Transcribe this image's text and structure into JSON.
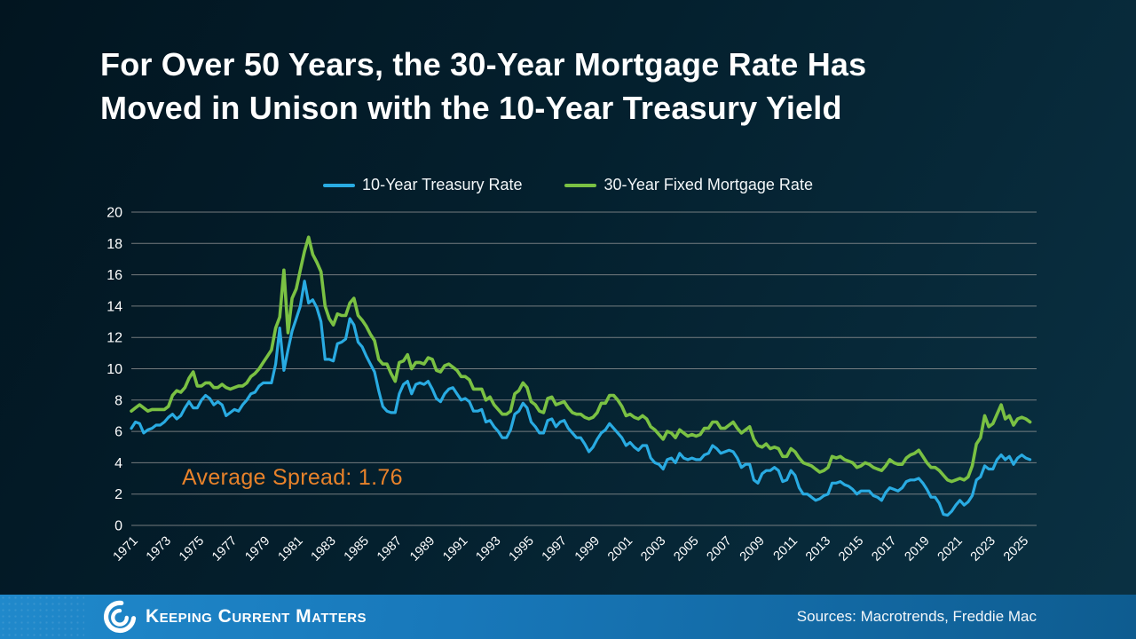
{
  "slide": {
    "title_line1": "For Over 50 Years, the 30-Year Mortgage Rate Has",
    "title_line2": "Moved in Unison with the 10-Year Treasury Yield"
  },
  "footer": {
    "brand": "Keeping Current Matters",
    "sources": "Sources: Macrotrends, Freddie Mac"
  },
  "colors": {
    "background_dark_navy": "#04202e",
    "treasury_blue": "#29abe2",
    "mortgage_green": "#7ac143",
    "annotation_orange": "#e8822a",
    "gridline_gray": "#9a9a9a",
    "footer_brand_blue": "#1878ba",
    "text_white": "#ffffff"
  },
  "chart_data": {
    "type": "line",
    "title": "",
    "xlabel": "",
    "ylabel": "",
    "ylim": [
      0,
      20
    ],
    "ytick_step": 2,
    "xlim": [
      1971,
      2025.9
    ],
    "grid": true,
    "legend_position": "top-center",
    "xticks": [
      "1971",
      "1973",
      "1975",
      "1977",
      "1979",
      "1981",
      "1983",
      "1985",
      "1987",
      "1989",
      "1991",
      "1993",
      "1995",
      "1997",
      "1999",
      "2001",
      "2003",
      "2005",
      "2007",
      "2009",
      "2011",
      "2013",
      "2015",
      "2017",
      "2019",
      "2021",
      "2023",
      "2025"
    ],
    "annotation": {
      "text": "Average Spread: 1.76"
    },
    "x_start": 1971,
    "x_step": 0.25,
    "series": [
      {
        "name": "10-Year Treasury Rate",
        "color": "#29abe2",
        "values": [
          6.2,
          6.6,
          6.5,
          5.9,
          6.1,
          6.2,
          6.4,
          6.4,
          6.6,
          6.9,
          7.1,
          6.8,
          7.0,
          7.5,
          7.9,
          7.5,
          7.5,
          8.0,
          8.3,
          8.1,
          7.7,
          7.9,
          7.7,
          7.0,
          7.2,
          7.4,
          7.3,
          7.7,
          8.0,
          8.4,
          8.5,
          8.9,
          9.1,
          9.1,
          9.1,
          10.3,
          12.6,
          9.9,
          11.2,
          12.4,
          13.2,
          14.0,
          15.6,
          14.2,
          14.4,
          13.9,
          13.0,
          10.6,
          10.6,
          10.5,
          11.6,
          11.7,
          11.9,
          13.2,
          12.8,
          11.7,
          11.4,
          10.8,
          10.3,
          9.8,
          8.6,
          7.6,
          7.3,
          7.2,
          7.2,
          8.4,
          9.0,
          9.2,
          8.4,
          9.0,
          9.1,
          9.0,
          9.2,
          8.7,
          8.1,
          7.9,
          8.4,
          8.7,
          8.8,
          8.4,
          8.0,
          8.1,
          7.9,
          7.3,
          7.3,
          7.4,
          6.6,
          6.7,
          6.3,
          6.0,
          5.6,
          5.6,
          6.1,
          7.1,
          7.3,
          7.8,
          7.5,
          6.6,
          6.3,
          5.9,
          5.9,
          6.7,
          6.8,
          6.3,
          6.6,
          6.7,
          6.2,
          5.9,
          5.6,
          5.6,
          5.2,
          4.7,
          5.0,
          5.5,
          5.9,
          6.1,
          6.5,
          6.2,
          5.9,
          5.6,
          5.1,
          5.3,
          5.0,
          4.8,
          5.1,
          5.1,
          4.3,
          4.0,
          3.9,
          3.6,
          4.2,
          4.3,
          4.0,
          4.6,
          4.3,
          4.2,
          4.3,
          4.2,
          4.2,
          4.5,
          4.6,
          5.1,
          4.9,
          4.6,
          4.7,
          4.8,
          4.7,
          4.3,
          3.7,
          3.9,
          3.9,
          2.9,
          2.7,
          3.3,
          3.5,
          3.5,
          3.7,
          3.5,
          2.8,
          2.9,
          3.5,
          3.2,
          2.4,
          2.0,
          2.0,
          1.8,
          1.6,
          1.7,
          1.9,
          2.0,
          2.7,
          2.7,
          2.8,
          2.6,
          2.5,
          2.3,
          2.0,
          2.2,
          2.2,
          2.2,
          1.9,
          1.8,
          1.6,
          2.1,
          2.4,
          2.3,
          2.2,
          2.4,
          2.8,
          2.9,
          2.9,
          3.0,
          2.7,
          2.3,
          1.8,
          1.8,
          1.4,
          0.7,
          0.65,
          0.9,
          1.3,
          1.6,
          1.3,
          1.5,
          1.9,
          2.9,
          3.1,
          3.8,
          3.6,
          3.6,
          4.2,
          4.5,
          4.2,
          4.4,
          3.9,
          4.3,
          4.5,
          4.3,
          4.2
        ]
      },
      {
        "name": "30-Year Fixed Mortgage Rate",
        "color": "#7ac143",
        "values": [
          7.3,
          7.5,
          7.7,
          7.5,
          7.3,
          7.4,
          7.4,
          7.4,
          7.4,
          7.6,
          8.3,
          8.6,
          8.5,
          8.8,
          9.4,
          9.8,
          8.9,
          8.9,
          9.1,
          9.1,
          8.8,
          8.8,
          9.0,
          8.8,
          8.7,
          8.8,
          8.9,
          8.9,
          9.1,
          9.5,
          9.7,
          10.0,
          10.4,
          10.8,
          11.2,
          12.6,
          13.3,
          16.3,
          12.3,
          14.5,
          15.1,
          16.3,
          17.5,
          18.4,
          17.3,
          16.8,
          16.2,
          14.0,
          13.2,
          12.8,
          13.5,
          13.4,
          13.4,
          14.2,
          14.5,
          13.4,
          13.1,
          12.7,
          12.2,
          11.8,
          10.6,
          10.3,
          10.3,
          9.7,
          9.2,
          10.4,
          10.5,
          10.9,
          10.0,
          10.4,
          10.4,
          10.3,
          10.7,
          10.6,
          9.9,
          9.8,
          10.2,
          10.3,
          10.1,
          9.9,
          9.5,
          9.5,
          9.3,
          8.7,
          8.7,
          8.7,
          8.0,
          8.2,
          7.7,
          7.4,
          7.1,
          7.1,
          7.3,
          8.4,
          8.6,
          9.1,
          8.8,
          7.9,
          7.7,
          7.3,
          7.2,
          8.1,
          8.2,
          7.7,
          7.8,
          7.9,
          7.5,
          7.2,
          7.1,
          7.1,
          6.9,
          6.8,
          6.9,
          7.2,
          7.8,
          7.8,
          8.3,
          8.3,
          8.0,
          7.6,
          7.0,
          7.1,
          6.9,
          6.8,
          7.0,
          6.8,
          6.3,
          6.1,
          5.8,
          5.5,
          6.0,
          5.9,
          5.6,
          6.1,
          5.9,
          5.7,
          5.8,
          5.7,
          5.8,
          6.2,
          6.2,
          6.6,
          6.6,
          6.2,
          6.2,
          6.4,
          6.6,
          6.2,
          5.9,
          6.1,
          6.3,
          5.5,
          5.1,
          5.0,
          5.2,
          4.9,
          5.0,
          4.9,
          4.4,
          4.4,
          4.9,
          4.7,
          4.3,
          4.0,
          3.9,
          3.8,
          3.6,
          3.4,
          3.5,
          3.7,
          4.4,
          4.3,
          4.4,
          4.2,
          4.1,
          4.0,
          3.7,
          3.8,
          4.0,
          3.9,
          3.7,
          3.6,
          3.5,
          3.8,
          4.2,
          4.0,
          3.9,
          3.9,
          4.3,
          4.5,
          4.6,
          4.8,
          4.4,
          4.0,
          3.7,
          3.7,
          3.5,
          3.2,
          2.9,
          2.8,
          2.9,
          3.0,
          2.9,
          3.1,
          3.8,
          5.2,
          5.6,
          7.0,
          6.3,
          6.5,
          7.1,
          7.7,
          6.8,
          7.0,
          6.4,
          6.8,
          6.9,
          6.8,
          6.6
        ]
      }
    ]
  }
}
